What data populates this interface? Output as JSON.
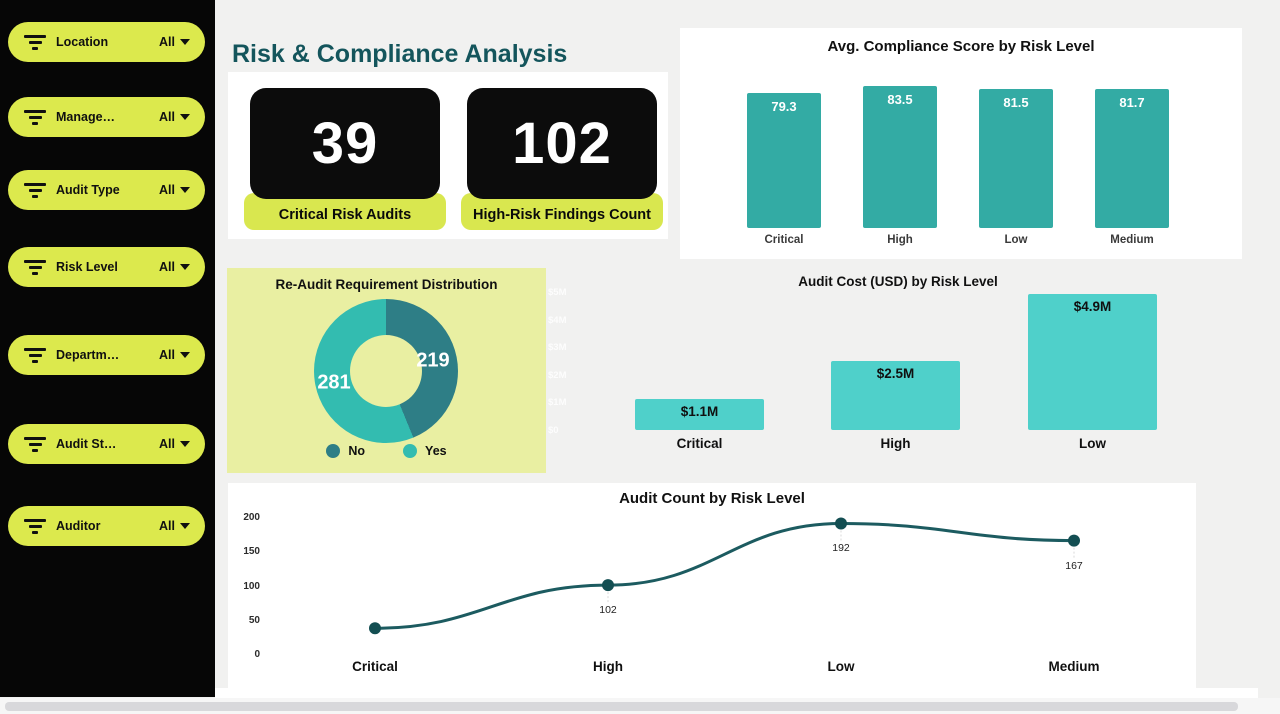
{
  "page": {
    "title": "Risk & Compliance Analysis"
  },
  "colors": {
    "accent_chartreuse": "#dce94d",
    "kpi_label_bg": "#d9e74f",
    "title_teal": "#14555c",
    "compliance_bar": "#33aba4",
    "cost_bar": "#4fd0ca",
    "donut_no": "#2e7e86",
    "donut_yes": "#33bcb0",
    "line_stroke": "#1c5b60",
    "line_point": "#134e52",
    "donut_panel_bg": "#e9efa2",
    "sidebar_bg": "#060606"
  },
  "sidebar": {
    "filters": [
      {
        "name": "location",
        "label": "Location",
        "value": "All"
      },
      {
        "name": "management",
        "label": "Manage…",
        "value": "All"
      },
      {
        "name": "audit-type",
        "label": "Audit Type",
        "value": "All"
      },
      {
        "name": "risk-level",
        "label": "Risk Level",
        "value": "All"
      },
      {
        "name": "department",
        "label": "Departm…",
        "value": "All"
      },
      {
        "name": "audit-status",
        "label": "Audit St…",
        "value": "All"
      },
      {
        "name": "auditor",
        "label": "Auditor",
        "value": "All"
      }
    ]
  },
  "kpis": [
    {
      "value": "39",
      "label": "Critical Risk Audits"
    },
    {
      "value": "102",
      "label": "High-Risk Findings Count"
    }
  ],
  "chart_data": [
    {
      "id": "compliance",
      "type": "bar",
      "title": "Avg. Compliance Score by Risk Level",
      "categories": [
        "Critical",
        "High",
        "Low",
        "Medium"
      ],
      "values": [
        79.3,
        83.5,
        81.5,
        81.7
      ],
      "value_labels": [
        "79.3",
        "83.5",
        "81.5",
        "81.7"
      ],
      "xlabel": "",
      "ylabel": "",
      "grid": false,
      "legend_position": "none"
    },
    {
      "id": "reaudit",
      "type": "pie",
      "title": "Re-Audit Requirement Distribution",
      "categories": [
        "No",
        "Yes"
      ],
      "values": [
        219,
        281
      ],
      "value_labels": [
        "219",
        "281"
      ],
      "legend_position": "bottom"
    },
    {
      "id": "cost",
      "type": "bar",
      "title": "Audit Cost (USD) by Risk Level",
      "categories": [
        "Critical",
        "High",
        "Low"
      ],
      "values": [
        1.1,
        2.5,
        4.9
      ],
      "value_labels": [
        "$1.1M",
        "$2.5M",
        "$4.9M"
      ],
      "yticks": [
        "$5M",
        "$4M",
        "$3M",
        "$2M",
        "$1M",
        "$0"
      ],
      "ylim": [
        0,
        5
      ],
      "grid": false,
      "legend_position": "none"
    },
    {
      "id": "count",
      "type": "line",
      "title": "Audit Count by Risk Level",
      "categories": [
        "Critical",
        "High",
        "Low",
        "Medium"
      ],
      "values": [
        39,
        102,
        192,
        167
      ],
      "point_labels": [
        "",
        "102",
        "192",
        "167"
      ],
      "yticks": [
        200,
        150,
        100,
        50,
        0
      ],
      "ylim": [
        0,
        200
      ],
      "grid": false,
      "legend_position": "none"
    }
  ]
}
